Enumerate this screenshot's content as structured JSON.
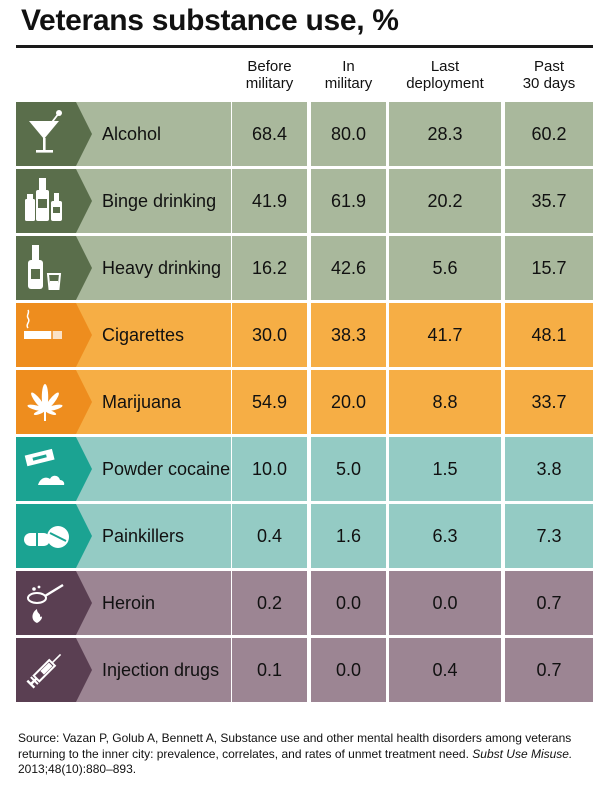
{
  "chart_data": {
    "type": "table",
    "title": "Veterans substance use, %",
    "columns": [
      "Before\nmilitary",
      "In\nmilitary",
      "Last\ndeployment",
      "Past\n30 days"
    ],
    "rows": [
      {
        "label": "Alcohol",
        "icon": "martini-glass-icon",
        "group": "alcohol",
        "values": [
          "68.4",
          "80.0",
          "28.3",
          "60.2"
        ]
      },
      {
        "label": "Binge drinking",
        "icon": "bottles-icon",
        "group": "alcohol",
        "values": [
          "41.9",
          "61.9",
          "20.2",
          "35.7"
        ]
      },
      {
        "label": "Heavy drinking",
        "icon": "bottle-and-glass-icon",
        "group": "alcohol",
        "values": [
          "16.2",
          "42.6",
          "5.6",
          "15.7"
        ]
      },
      {
        "label": "Cigarettes",
        "icon": "cigarette-icon",
        "group": "smoking",
        "values": [
          "30.0",
          "38.3",
          "41.7",
          "48.1"
        ]
      },
      {
        "label": "Marijuana",
        "icon": "cannabis-leaf-icon",
        "group": "smoking",
        "values": [
          "54.9",
          "20.0",
          "8.8",
          "33.7"
        ]
      },
      {
        "label": "Powder cocaine",
        "icon": "razor-blade-powder-icon",
        "group": "stimulant",
        "values": [
          "10.0",
          "5.0",
          "1.5",
          "3.8"
        ]
      },
      {
        "label": "Painkillers",
        "icon": "pills-icon",
        "group": "stimulant",
        "values": [
          "0.4",
          "1.6",
          "6.3",
          "7.3"
        ]
      },
      {
        "label": "Heroin",
        "icon": "spoon-flame-icon",
        "group": "opiate",
        "values": [
          "0.2",
          "0.0",
          "0.0",
          "0.7"
        ]
      },
      {
        "label": "Injection drugs",
        "icon": "syringe-icon",
        "group": "opiate",
        "values": [
          "0.1",
          "0.0",
          "0.4",
          "0.7"
        ]
      }
    ]
  },
  "colors": {
    "alcohol": {
      "light": "#a9b89c",
      "dark": "#5a6e4b"
    },
    "smoking": {
      "light": "#f6ae45",
      "dark": "#ee8d1e"
    },
    "stimulant": {
      "light": "#94cbc4",
      "dark": "#1ba392"
    },
    "opiate": {
      "light": "#9c8593",
      "dark": "#5a3f52"
    }
  },
  "source": {
    "text": "Source: Vazan P, Golub A, Bennett A, Substance use and other mental health disorders among veterans returning to the inner city: prevalence, correlates, and rates of unmet treatment need.",
    "journal": "Subst Use Misuse.",
    "citation": " 2013;48(10):880–893."
  }
}
